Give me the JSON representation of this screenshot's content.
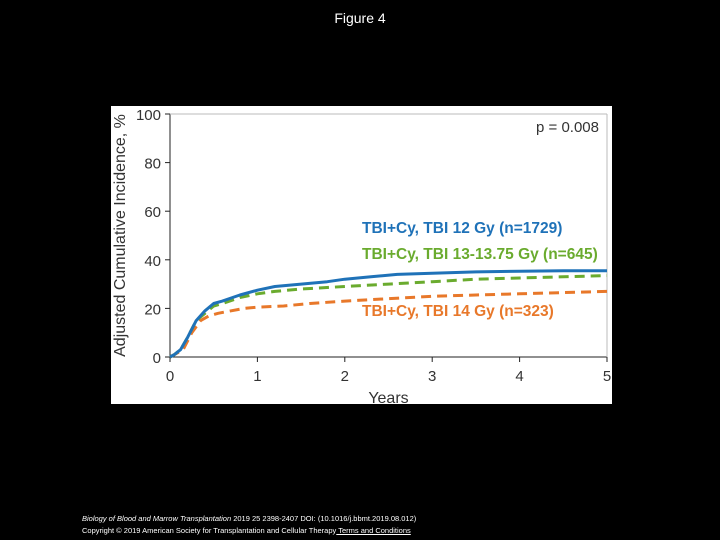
{
  "page": {
    "title": "Figure 4"
  },
  "chart_data": {
    "type": "line",
    "ylabel": "Adjusted Cumulative Incidence, %",
    "xlabel": "Years",
    "xlim": [
      0,
      5
    ],
    "ylim": [
      0,
      100
    ],
    "x_ticks": [
      "0",
      "1",
      "2",
      "3",
      "4",
      "5"
    ],
    "y_ticks": [
      "0",
      "20",
      "40",
      "60",
      "80",
      "100"
    ],
    "annotation": "p = 0.008",
    "series": [
      {
        "name": "TBI+Cy, TBI 12 Gy (n=1729)",
        "color": "#1f72b8",
        "dash": "solid",
        "points": [
          [
            0,
            0
          ],
          [
            0.05,
            1
          ],
          [
            0.12,
            3
          ],
          [
            0.2,
            8
          ],
          [
            0.3,
            15
          ],
          [
            0.4,
            19
          ],
          [
            0.5,
            22
          ],
          [
            0.6,
            23
          ],
          [
            0.8,
            25.5
          ],
          [
            1.0,
            27.5
          ],
          [
            1.2,
            29
          ],
          [
            1.5,
            30
          ],
          [
            1.8,
            31
          ],
          [
            2.0,
            32
          ],
          [
            2.3,
            33
          ],
          [
            2.6,
            34
          ],
          [
            3.0,
            34.5
          ],
          [
            3.5,
            35
          ],
          [
            4.0,
            35.3
          ],
          [
            4.5,
            35.5
          ],
          [
            5.0,
            35.5
          ]
        ]
      },
      {
        "name": "TBI+Cy, TBI 13-13.75 Gy (n=645)",
        "color": "#6aab2e",
        "dash": "dashed",
        "points": [
          [
            0,
            0
          ],
          [
            0.05,
            1
          ],
          [
            0.12,
            3
          ],
          [
            0.2,
            8
          ],
          [
            0.3,
            15
          ],
          [
            0.4,
            18
          ],
          [
            0.5,
            21
          ],
          [
            0.6,
            22
          ],
          [
            0.8,
            24.5
          ],
          [
            1.0,
            26
          ],
          [
            1.2,
            27
          ],
          [
            1.5,
            28
          ],
          [
            2.0,
            29
          ],
          [
            2.5,
            30
          ],
          [
            3.0,
            31
          ],
          [
            3.5,
            32
          ],
          [
            4.0,
            32.5
          ],
          [
            4.5,
            33
          ],
          [
            5.0,
            33.5
          ]
        ]
      },
      {
        "name": "TBI+Cy, TBI 14 Gy (n=323)",
        "color": "#e8782a",
        "dash": "dashed",
        "points": [
          [
            0,
            0
          ],
          [
            0.05,
            1
          ],
          [
            0.15,
            3
          ],
          [
            0.25,
            10
          ],
          [
            0.35,
            15
          ],
          [
            0.45,
            17
          ],
          [
            0.55,
            18
          ],
          [
            0.7,
            19
          ],
          [
            0.85,
            20
          ],
          [
            1.0,
            20.5
          ],
          [
            1.3,
            21
          ],
          [
            1.6,
            22
          ],
          [
            2.0,
            23
          ],
          [
            2.5,
            24
          ],
          [
            3.0,
            25
          ],
          [
            3.5,
            25.5
          ],
          [
            4.0,
            26
          ],
          [
            4.5,
            26.5
          ],
          [
            5.0,
            27
          ]
        ]
      }
    ]
  },
  "footer": {
    "journal": "Biology of Blood and Marrow Transplantation",
    "citation": " 2019 25 2398-2407 DOI: (10.1016/j.bbmt.2019.08.012)",
    "copyright": "Copyright © 2019 American Society for Transplantation and Cellular Therapy",
    "terms_link": " Terms and Conditions"
  }
}
